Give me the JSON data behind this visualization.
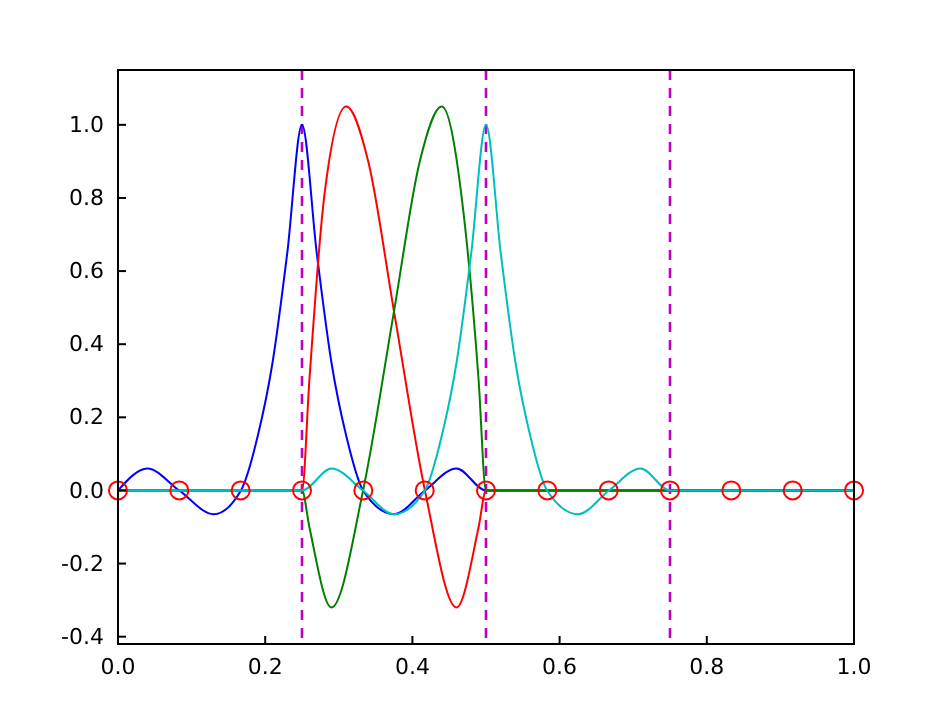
{
  "chart_data": {
    "type": "line",
    "xlim": [
      0,
      1
    ],
    "ylim": [
      -0.42,
      1.15
    ],
    "xticks": [
      {
        "value": 0,
        "label": "0.0"
      },
      {
        "value": 0.2,
        "label": "0.2"
      },
      {
        "value": 0.4,
        "label": "0.4"
      },
      {
        "value": 0.6,
        "label": "0.6"
      },
      {
        "value": 0.8,
        "label": "0.8"
      },
      {
        "value": 1,
        "label": "1.0"
      }
    ],
    "yticks": [
      {
        "value": -0.4,
        "label": "-0.4"
      },
      {
        "value": -0.2,
        "label": "-0.2"
      },
      {
        "value": 0,
        "label": "0.0"
      },
      {
        "value": 0.2,
        "label": "0.2"
      },
      {
        "value": 0.4,
        "label": "0.4"
      },
      {
        "value": 0.6,
        "label": "0.6"
      },
      {
        "value": 0.8,
        "label": "0.8"
      },
      {
        "value": 1,
        "label": "1.0"
      }
    ],
    "grid": false,
    "line_style": "solid",
    "series": [
      {
        "color": "#0000ff",
        "marker": "none",
        "x": [
          0,
          0.04,
          0.083,
          0.13,
          0.167,
          0.19,
          0.21,
          0.23,
          0.25,
          0.27,
          0.29,
          0.31,
          0.333,
          0.375,
          0.417,
          0.46,
          0.5,
          1
        ],
        "values": [
          0,
          0.06,
          0,
          -0.065,
          0,
          0.15,
          0.35,
          0.65,
          1.0,
          0.65,
          0.35,
          0.15,
          0,
          -0.065,
          0,
          0.06,
          0,
          0
        ]
      },
      {
        "color": "#ff0000",
        "marker": "none",
        "x": [
          0,
          0.25,
          0.26,
          0.28,
          0.31,
          0.34,
          0.375,
          0.417,
          0.46,
          0.49,
          0.5,
          1
        ],
        "values": [
          0,
          0,
          0.3,
          0.8,
          1.05,
          0.9,
          0.49,
          0,
          -0.32,
          -0.1,
          0,
          0
        ]
      },
      {
        "color": "#008000",
        "marker": "none",
        "x": [
          0,
          0.25,
          0.26,
          0.29,
          0.333,
          0.375,
          0.41,
          0.44,
          0.47,
          0.49,
          0.5,
          1
        ],
        "values": [
          0,
          0,
          -0.1,
          -0.32,
          0,
          0.49,
          0.9,
          1.05,
          0.75,
          0.3,
          0,
          0
        ]
      },
      {
        "color": "#00bfbf",
        "marker": "none",
        "x": [
          0,
          0.25,
          0.29,
          0.333,
          0.375,
          0.417,
          0.44,
          0.46,
          0.48,
          0.5,
          0.52,
          0.54,
          0.56,
          0.583,
          0.625,
          0.667,
          0.71,
          0.75,
          1
        ],
        "values": [
          0,
          0,
          0.06,
          0,
          -0.065,
          0,
          0.15,
          0.35,
          0.65,
          1.0,
          0.65,
          0.35,
          0.15,
          0,
          -0.065,
          0,
          0.06,
          0,
          0
        ]
      },
      {
        "type": "scatter",
        "color": "#ff0000",
        "marker": "circle",
        "x": [
          0,
          0.0833,
          0.1667,
          0.25,
          0.3333,
          0.4167,
          0.5,
          0.5833,
          0.6667,
          0.75,
          0.8333,
          0.9167,
          1
        ],
        "values": [
          0,
          0,
          0,
          0,
          0,
          0,
          0,
          0,
          0,
          0,
          0,
          0,
          0
        ]
      }
    ],
    "ref_lines": [
      {
        "axis": "x",
        "value": 0.25,
        "color": "#bf00bf",
        "line_style": "dashed"
      },
      {
        "axis": "x",
        "value": 0.5,
        "color": "#bf00bf",
        "line_style": "dashed"
      },
      {
        "axis": "x",
        "value": 0.75,
        "color": "#bf00bf",
        "line_style": "dashed"
      }
    ]
  }
}
